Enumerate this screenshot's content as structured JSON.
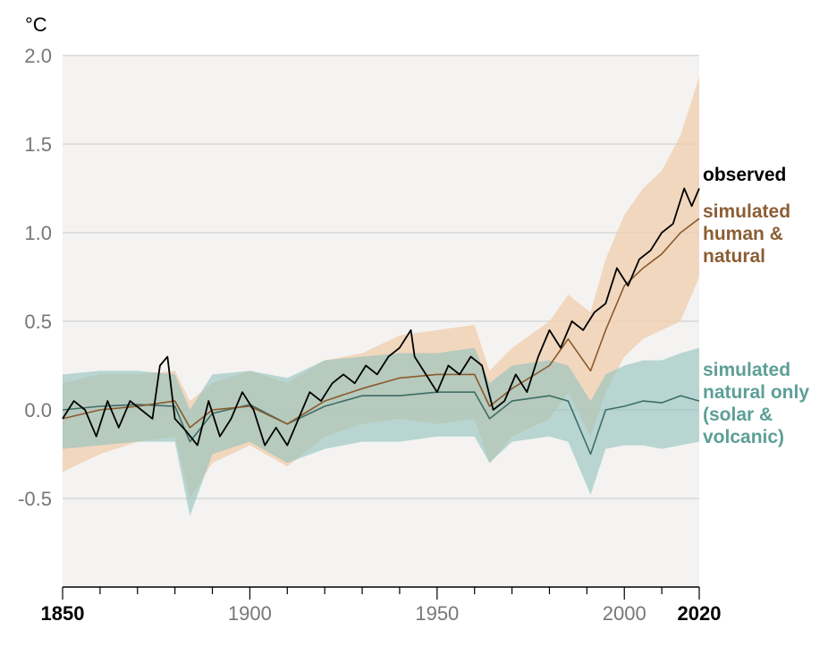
{
  "chart_data": {
    "type": "line",
    "unit_label": "°C",
    "xlim": [
      1850,
      2020
    ],
    "ylim": [
      -1.0,
      2.0
    ],
    "grid": true,
    "y_ticks": [
      {
        "value": 2.0,
        "label": "2.0"
      },
      {
        "value": 1.5,
        "label": "1.5"
      },
      {
        "value": 1.0,
        "label": "1.0"
      },
      {
        "value": 0.5,
        "label": "0.5"
      },
      {
        "value": 0.0,
        "label": "0.0"
      },
      {
        "value": -0.5,
        "label": "-0.5"
      }
    ],
    "x_ticks": [
      {
        "value": 1850,
        "label": "1850",
        "bold": true
      },
      {
        "value": 1900,
        "label": "1900",
        "bold": false
      },
      {
        "value": 1950,
        "label": "1950",
        "bold": false
      },
      {
        "value": 2000,
        "label": "2000",
        "bold": false
      },
      {
        "value": 2020,
        "label": "2020",
        "bold": true
      }
    ],
    "colors": {
      "observed": "#000000",
      "human_natural_line": "#8a5a2b",
      "human_natural_band": "#f0d0b0",
      "natural_line": "#3e6e66",
      "natural_band": "#8fc2bd",
      "plot_bg": "#f4f3f2",
      "grid": "#d8d8d8"
    },
    "series": [
      {
        "key": "observed",
        "name": "observed",
        "label_lines": [
          "observed"
        ],
        "x": [
          1850,
          1853,
          1856,
          1859,
          1862,
          1865,
          1868,
          1871,
          1874,
          1876,
          1878,
          1880,
          1883,
          1886,
          1889,
          1892,
          1895,
          1898,
          1901,
          1904,
          1907,
          1910,
          1913,
          1916,
          1919,
          1922,
          1925,
          1928,
          1931,
          1934,
          1937,
          1940,
          1943,
          1944,
          1947,
          1950,
          1953,
          1956,
          1959,
          1962,
          1965,
          1968,
          1971,
          1974,
          1977,
          1980,
          1983,
          1986,
          1989,
          1992,
          1995,
          1998,
          2001,
          2004,
          2007,
          2010,
          2013,
          2016,
          2018,
          2020
        ],
        "values": [
          -0.05,
          0.05,
          0.0,
          -0.15,
          0.05,
          -0.1,
          0.05,
          0.0,
          -0.05,
          0.25,
          0.3,
          -0.05,
          -0.12,
          -0.2,
          0.05,
          -0.15,
          -0.05,
          0.1,
          0.0,
          -0.2,
          -0.1,
          -0.2,
          -0.05,
          0.1,
          0.05,
          0.15,
          0.2,
          0.15,
          0.25,
          0.2,
          0.3,
          0.35,
          0.45,
          0.3,
          0.2,
          0.1,
          0.25,
          0.2,
          0.3,
          0.25,
          0.0,
          0.05,
          0.2,
          0.1,
          0.3,
          0.45,
          0.35,
          0.5,
          0.45,
          0.55,
          0.6,
          0.8,
          0.7,
          0.85,
          0.9,
          1.0,
          1.05,
          1.25,
          1.15,
          1.25
        ]
      },
      {
        "key": "human_natural",
        "name": "simulated human & natural",
        "label_lines": [
          "simulated",
          "human &",
          "natural"
        ],
        "x": [
          1850,
          1860,
          1870,
          1880,
          1884,
          1890,
          1900,
          1910,
          1920,
          1930,
          1940,
          1950,
          1960,
          1964,
          1970,
          1980,
          1985,
          1991,
          1995,
          2000,
          2005,
          2010,
          2015,
          2020
        ],
        "values": [
          -0.05,
          0.0,
          0.02,
          0.05,
          -0.1,
          0.0,
          0.02,
          -0.08,
          0.05,
          0.12,
          0.18,
          0.2,
          0.2,
          0.02,
          0.12,
          0.25,
          0.4,
          0.22,
          0.45,
          0.7,
          0.8,
          0.88,
          1.0,
          1.08
        ],
        "band_upper": [
          0.15,
          0.2,
          0.2,
          0.22,
          0.05,
          0.15,
          0.22,
          0.15,
          0.28,
          0.32,
          0.42,
          0.45,
          0.48,
          0.22,
          0.35,
          0.5,
          0.65,
          0.55,
          0.85,
          1.1,
          1.25,
          1.35,
          1.55,
          1.88
        ],
        "band_lower": [
          -0.35,
          -0.25,
          -0.18,
          -0.15,
          -0.5,
          -0.3,
          -0.2,
          -0.32,
          -0.15,
          -0.08,
          -0.05,
          -0.08,
          -0.05,
          -0.3,
          -0.15,
          -0.05,
          0.1,
          -0.15,
          0.1,
          0.3,
          0.4,
          0.45,
          0.5,
          0.75
        ]
      },
      {
        "key": "natural_only",
        "name": "simulated natural only (solar & volcanic)",
        "label_lines": [
          "simulated",
          "natural only",
          "(solar &",
          "volcanic)"
        ],
        "x": [
          1850,
          1860,
          1870,
          1880,
          1884,
          1890,
          1900,
          1910,
          1920,
          1930,
          1940,
          1950,
          1960,
          1964,
          1970,
          1980,
          1985,
          1991,
          1995,
          2000,
          2005,
          2010,
          2015,
          2020
        ],
        "values": [
          0.0,
          0.02,
          0.03,
          0.02,
          -0.18,
          -0.02,
          0.03,
          -0.08,
          0.02,
          0.08,
          0.08,
          0.1,
          0.1,
          -0.05,
          0.05,
          0.08,
          0.05,
          -0.25,
          0.0,
          0.02,
          0.05,
          0.04,
          0.08,
          0.05
        ],
        "band_upper": [
          0.2,
          0.22,
          0.22,
          0.2,
          0.0,
          0.2,
          0.22,
          0.18,
          0.28,
          0.3,
          0.32,
          0.32,
          0.35,
          0.15,
          0.25,
          0.28,
          0.25,
          0.05,
          0.2,
          0.25,
          0.28,
          0.28,
          0.32,
          0.35
        ],
        "band_lower": [
          -0.22,
          -0.2,
          -0.18,
          -0.18,
          -0.6,
          -0.25,
          -0.18,
          -0.3,
          -0.22,
          -0.18,
          -0.18,
          -0.15,
          -0.15,
          -0.3,
          -0.18,
          -0.15,
          -0.18,
          -0.48,
          -0.22,
          -0.2,
          -0.2,
          -0.22,
          -0.2,
          -0.18
        ]
      }
    ]
  }
}
